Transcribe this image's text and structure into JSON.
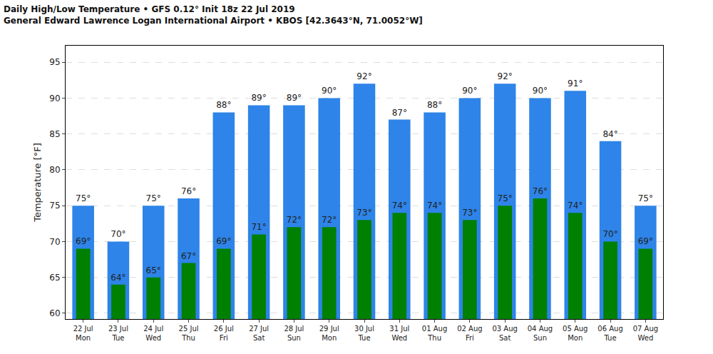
{
  "chart_data": {
    "type": "bar",
    "title": "Daily High/Low Temperature • GFS 0.12° Init 18z 22 Jul 2019",
    "subtitle": "General Edward Lawrence Logan International Airport • KBOS [42.3643°N, 71.0052°W]",
    "y_label": "Temperature [°F]",
    "categories": [
      "22 Jul\nMon",
      "23 Jul\nTue",
      "24 Jul\nWed",
      "25 Jul\nThu",
      "26 Jul\nFri",
      "27 Jul\nSat",
      "28 Jul\nSun",
      "29 Jul\nMon",
      "30 Jul\nTue",
      "31 Jul\nWed",
      "01 Aug\nThu",
      "02 Aug\nFri",
      "03 Aug\nSat",
      "04 Aug\nSun",
      "05 Aug\nMon",
      "06 Aug\nTue",
      "07 Aug\nWed"
    ],
    "series": [
      {
        "color": "#2e84e8",
        "values": [
          75,
          70,
          75,
          76,
          88,
          89,
          89,
          90,
          92,
          87,
          88,
          90,
          92,
          90,
          91,
          84,
          75
        ],
        "value_labels": [
          "75°",
          "70°",
          "75°",
          "76°",
          "88°",
          "89°",
          "89°",
          "90°",
          "92°",
          "87°",
          "88°",
          "90°",
          "92°",
          "90°",
          "91°",
          "84°",
          "75°"
        ]
      },
      {
        "color": "#008000",
        "values": [
          69,
          64,
          65,
          67,
          69,
          71,
          72,
          72,
          73,
          74,
          74,
          73,
          75,
          76,
          74,
          70,
          69
        ],
        "value_labels": [
          "69°",
          "64°",
          "65°",
          "67°",
          "69°",
          "71°",
          "72°",
          "72°",
          "73°",
          "74°",
          "74°",
          "73°",
          "75°",
          "76°",
          "74°",
          "70°",
          "69°"
        ]
      }
    ],
    "ylim": [
      59.2,
      97.3
    ],
    "yticks": [
      60,
      65,
      70,
      75,
      80,
      85,
      90,
      95
    ],
    "grid": true,
    "data_labels": true
  }
}
